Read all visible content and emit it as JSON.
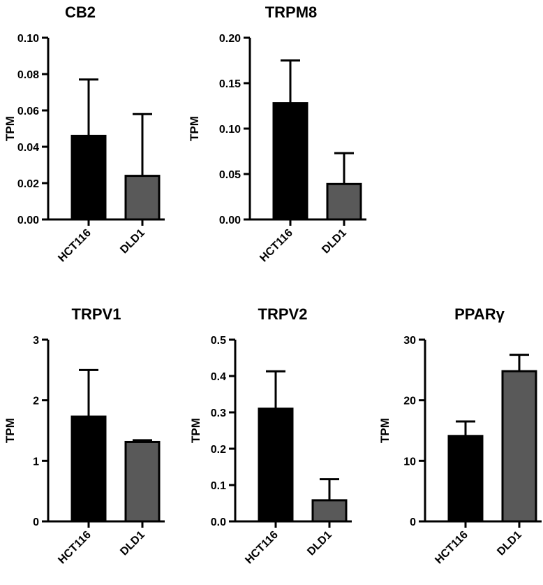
{
  "chart_data": [
    {
      "type": "bar",
      "title": "CB2",
      "ylabel": "TPM",
      "categories": [
        "HCT116",
        "DLD1"
      ],
      "values": [
        0.046,
        0.024
      ],
      "errors": [
        0.031,
        0.034
      ],
      "ylim": [
        0,
        0.1
      ],
      "yticks": [
        "0.00",
        "0.02",
        "0.04",
        "0.06",
        "0.08",
        "0.10"
      ],
      "colors": [
        "#000000",
        "#595959"
      ]
    },
    {
      "type": "bar",
      "title": "TRPM8",
      "ylabel": "TPM",
      "categories": [
        "HCT116",
        "DLD1"
      ],
      "values": [
        0.128,
        0.039
      ],
      "errors": [
        0.047,
        0.034
      ],
      "ylim": [
        0,
        0.2
      ],
      "yticks": [
        "0.00",
        "0.05",
        "0.10",
        "0.15",
        "0.20"
      ],
      "colors": [
        "#000000",
        "#595959"
      ]
    },
    {
      "type": "bar",
      "title": "TRPV1",
      "ylabel": "TPM",
      "categories": [
        "HCT116",
        "DLD1"
      ],
      "values": [
        1.73,
        1.31
      ],
      "errors": [
        0.77,
        0.03
      ],
      "ylim": [
        0,
        3
      ],
      "yticks": [
        "0",
        "1",
        "2",
        "3"
      ],
      "colors": [
        "#000000",
        "#595959"
      ]
    },
    {
      "type": "bar",
      "title": "TRPV2",
      "ylabel": "TPM",
      "categories": [
        "HCT116",
        "DLD1"
      ],
      "values": [
        0.31,
        0.058
      ],
      "errors": [
        0.103,
        0.058
      ],
      "ylim": [
        0,
        0.5
      ],
      "yticks": [
        "0.0",
        "0.1",
        "0.2",
        "0.3",
        "0.4",
        "0.5"
      ],
      "colors": [
        "#000000",
        "#595959"
      ]
    },
    {
      "type": "bar",
      "title": "PPARγ",
      "ylabel": "TPM",
      "categories": [
        "HCT116",
        "DLD1"
      ],
      "values": [
        14.1,
        24.8
      ],
      "errors": [
        2.4,
        2.7
      ],
      "ylim": [
        0,
        30
      ],
      "yticks": [
        "0",
        "10",
        "20",
        "30"
      ],
      "colors": [
        "#000000",
        "#595959"
      ]
    }
  ]
}
